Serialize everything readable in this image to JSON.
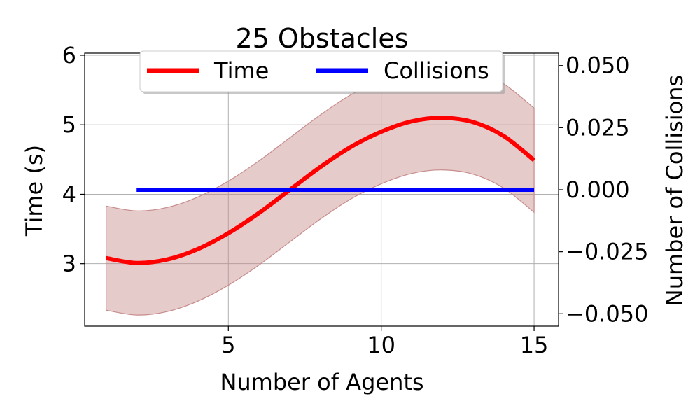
{
  "chart_data": {
    "type": "line",
    "title": "25 Obstacles",
    "xlabel": "Number of Agents",
    "ylabel": "Time (s)",
    "ylabel_right": "Number of Collisions",
    "xlim": [
      0.3,
      15.8
    ],
    "ylim": [
      2.1,
      6.03
    ],
    "ylim_right": [
      -0.055,
      0.055
    ],
    "xticks": [
      5,
      10,
      15
    ],
    "xtick_labels": [
      "5",
      "10",
      "15"
    ],
    "yticks": [
      3,
      4,
      5,
      6
    ],
    "ytick_labels": [
      "3",
      "4",
      "5",
      "6"
    ],
    "yticks_right": [
      -0.05,
      -0.025,
      0,
      0.025,
      0.05
    ],
    "ytick_labels_right": [
      "−0.050",
      "−0.025",
      "0.000",
      "0.025",
      "0.050"
    ],
    "grid": true,
    "legend_position": "top-center",
    "series": [
      {
        "name": "Time",
        "axis": "left",
        "color": "#ff0000",
        "band_color": "#c88b8b",
        "x": [
          1,
          2,
          3,
          4,
          5,
          6,
          7,
          8,
          9,
          10,
          11,
          12,
          13,
          14,
          15
        ],
        "y": [
          3.08,
          3.01,
          3.06,
          3.21,
          3.44,
          3.73,
          4.06,
          4.39,
          4.68,
          4.9,
          5.05,
          5.1,
          5.04,
          4.84,
          4.49
        ],
        "y_upper": [
          3.83,
          3.76,
          3.81,
          3.96,
          4.19,
          4.48,
          4.81,
          5.14,
          5.43,
          5.65,
          5.8,
          5.85,
          5.79,
          5.59,
          5.24
        ],
        "y_lower": [
          2.33,
          2.26,
          2.31,
          2.46,
          2.69,
          2.98,
          3.31,
          3.64,
          3.93,
          4.15,
          4.3,
          4.35,
          4.29,
          4.09,
          3.74
        ]
      },
      {
        "name": "Collisions",
        "axis": "right",
        "color": "#0000ff",
        "x": [
          2,
          3,
          4,
          5,
          6,
          7,
          8,
          9,
          10,
          11,
          12,
          13,
          14,
          15
        ],
        "y": [
          0,
          0,
          0,
          0,
          0,
          0,
          0,
          0,
          0,
          0,
          0,
          0,
          0,
          0
        ]
      }
    ]
  }
}
